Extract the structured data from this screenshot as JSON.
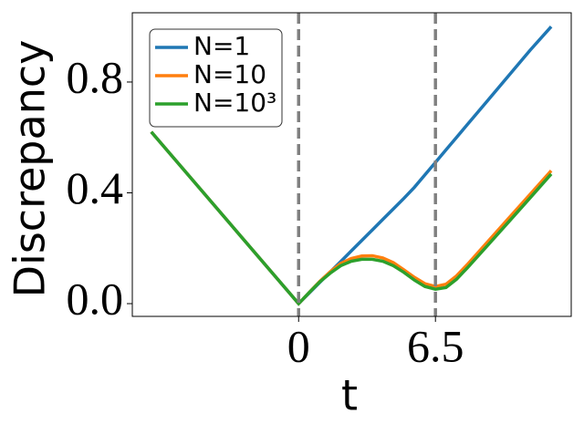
{
  "chart_data": {
    "type": "line",
    "xlabel": "t",
    "ylabel": "Discrepancy",
    "x": [
      -7,
      0,
      0.5,
      1,
      1.5,
      2,
      2.5,
      3,
      3.5,
      4,
      4.5,
      5,
      5.5,
      6,
      6.5,
      7,
      7.5,
      8,
      9,
      10,
      11,
      12
    ],
    "series": [
      {
        "name": "N=1",
        "color": "#1f77b4",
        "values": [
          0.62,
          0,
          0.038,
          0.076,
          0.114,
          0.152,
          0.19,
          0.228,
          0.266,
          0.304,
          0.342,
          0.38,
          0.42,
          0.465,
          0.51,
          0.555,
          0.6,
          0.645,
          0.735,
          0.825,
          0.915,
          1.0
        ]
      },
      {
        "name": "N=10",
        "color": "#ff7f0e",
        "values": [
          0.62,
          0,
          0.04,
          0.08,
          0.115,
          0.145,
          0.163,
          0.172,
          0.173,
          0.165,
          0.148,
          0.122,
          0.095,
          0.072,
          0.062,
          0.07,
          0.1,
          0.14,
          0.225,
          0.31,
          0.395,
          0.48
        ]
      },
      {
        "name": "N=10³",
        "color": "#2ca02c",
        "values": [
          0.62,
          0,
          0.04,
          0.078,
          0.11,
          0.137,
          0.153,
          0.16,
          0.16,
          0.153,
          0.137,
          0.113,
          0.085,
          0.062,
          0.052,
          0.058,
          0.088,
          0.128,
          0.212,
          0.297,
          0.382,
          0.468
        ]
      }
    ],
    "vlines": [
      0,
      6.5
    ],
    "vline_color": "#808080",
    "xlim": [
      -7.9,
      12.95
    ],
    "ylim": [
      -0.046,
      1.05
    ],
    "xticks": [
      0,
      6.5
    ],
    "yticks": [
      {
        "value": 0,
        "label": "0.0"
      },
      {
        "value": 0.4,
        "label": "0.4"
      },
      {
        "value": 0.8,
        "label": "0.8"
      }
    ],
    "legend": "upper left"
  }
}
